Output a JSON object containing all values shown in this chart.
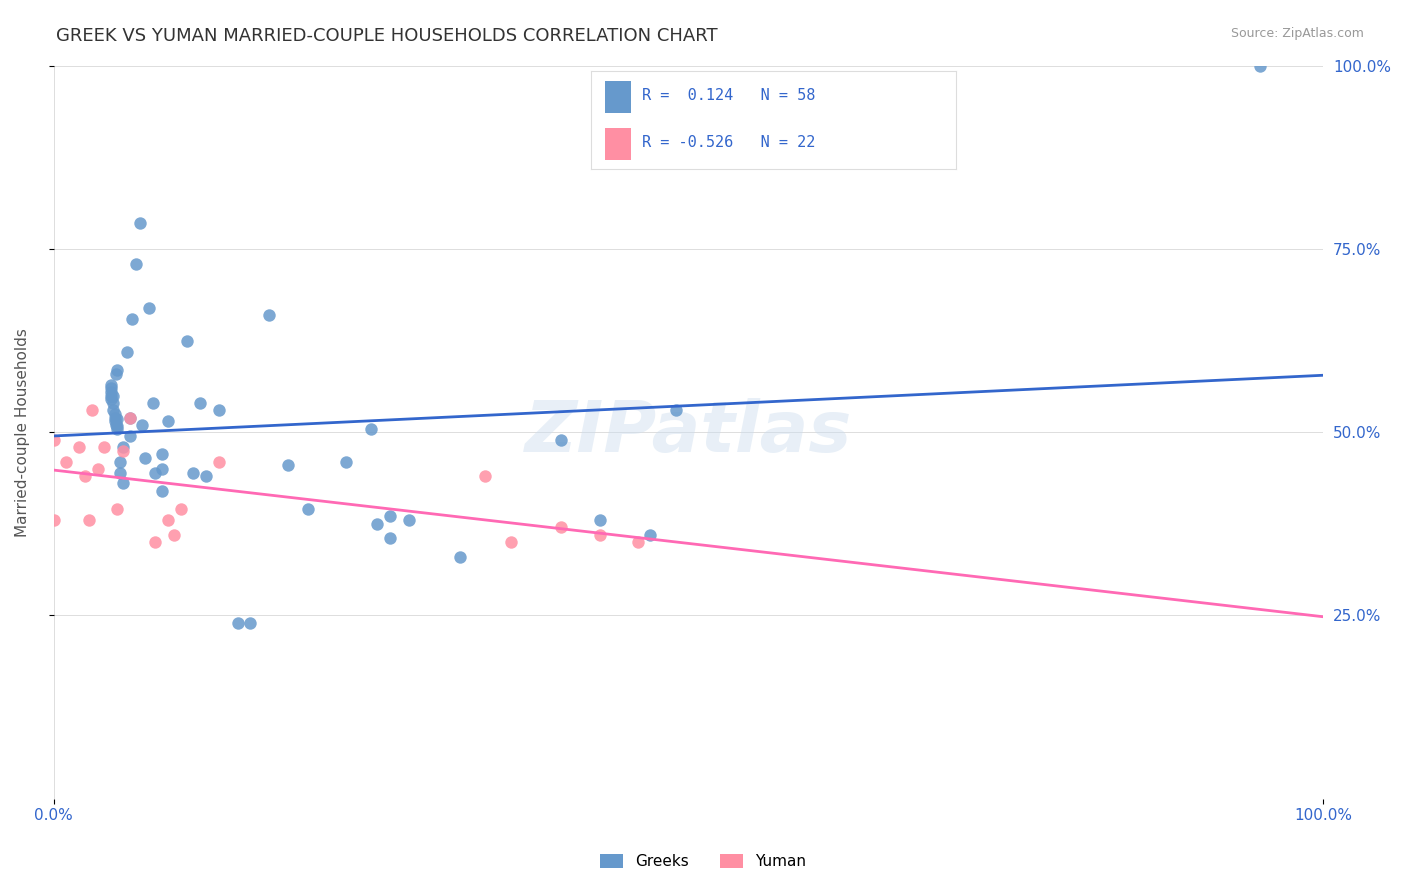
{
  "title": "GREEK VS YUMAN MARRIED-COUPLE HOUSEHOLDS CORRELATION CHART",
  "source": "Source: ZipAtlas.com",
  "xlabel": "",
  "ylabel": "Married-couple Households",
  "xlim": [
    0,
    1
  ],
  "ylim": [
    0,
    1
  ],
  "xtick_labels": [
    "0.0%",
    "100.0%"
  ],
  "ytick_labels_left": [],
  "ytick_labels_right": [
    "100.0%",
    "75.0%",
    "50.0%",
    "25.0%"
  ],
  "ytick_positions_right": [
    1.0,
    0.75,
    0.5,
    0.25
  ],
  "watermark": "ZIPatlas",
  "greek_color": "#6699CC",
  "yuman_color": "#FF8FA3",
  "greek_line_color": "#3366CC",
  "yuman_line_color": "#FF69B4",
  "greek_R": 0.124,
  "greek_N": 58,
  "yuman_R": -0.526,
  "yuman_N": 22,
  "greek_scatter_x": [
    0.045,
    0.045,
    0.045,
    0.045,
    0.045,
    0.047,
    0.047,
    0.047,
    0.048,
    0.048,
    0.048,
    0.049,
    0.049,
    0.05,
    0.05,
    0.05,
    0.05,
    0.052,
    0.052,
    0.055,
    0.055,
    0.058,
    0.06,
    0.06,
    0.062,
    0.065,
    0.068,
    0.07,
    0.072,
    0.075,
    0.078,
    0.08,
    0.085,
    0.085,
    0.085,
    0.09,
    0.105,
    0.11,
    0.115,
    0.12,
    0.13,
    0.145,
    0.155,
    0.17,
    0.185,
    0.2,
    0.23,
    0.25,
    0.255,
    0.265,
    0.265,
    0.28,
    0.32,
    0.4,
    0.43,
    0.47,
    0.49,
    0.95
  ],
  "greek_scatter_y": [
    0.545,
    0.55,
    0.555,
    0.56,
    0.565,
    0.53,
    0.54,
    0.55,
    0.515,
    0.52,
    0.525,
    0.51,
    0.58,
    0.505,
    0.508,
    0.518,
    0.585,
    0.445,
    0.46,
    0.43,
    0.48,
    0.61,
    0.495,
    0.52,
    0.655,
    0.73,
    0.785,
    0.51,
    0.465,
    0.67,
    0.54,
    0.445,
    0.42,
    0.45,
    0.47,
    0.515,
    0.625,
    0.445,
    0.54,
    0.44,
    0.53,
    0.24,
    0.24,
    0.66,
    0.455,
    0.395,
    0.46,
    0.505,
    0.375,
    0.355,
    0.385,
    0.38,
    0.33,
    0.49,
    0.38,
    0.36,
    0.53,
    1.0
  ],
  "yuman_scatter_x": [
    0.0,
    0.0,
    0.01,
    0.02,
    0.025,
    0.028,
    0.03,
    0.035,
    0.04,
    0.05,
    0.055,
    0.06,
    0.08,
    0.09,
    0.095,
    0.1,
    0.13,
    0.34,
    0.36,
    0.4,
    0.43,
    0.46
  ],
  "yuman_scatter_y": [
    0.38,
    0.49,
    0.46,
    0.48,
    0.44,
    0.38,
    0.53,
    0.45,
    0.48,
    0.395,
    0.475,
    0.52,
    0.35,
    0.38,
    0.36,
    0.395,
    0.46,
    0.44,
    0.35,
    0.37,
    0.36,
    0.35
  ],
  "background_color": "#FFFFFF",
  "grid_color": "#DDDDDD",
  "title_color": "#333333",
  "right_axis_color": "#3366CC",
  "bottom_axis_tick_color": "#3366CC"
}
